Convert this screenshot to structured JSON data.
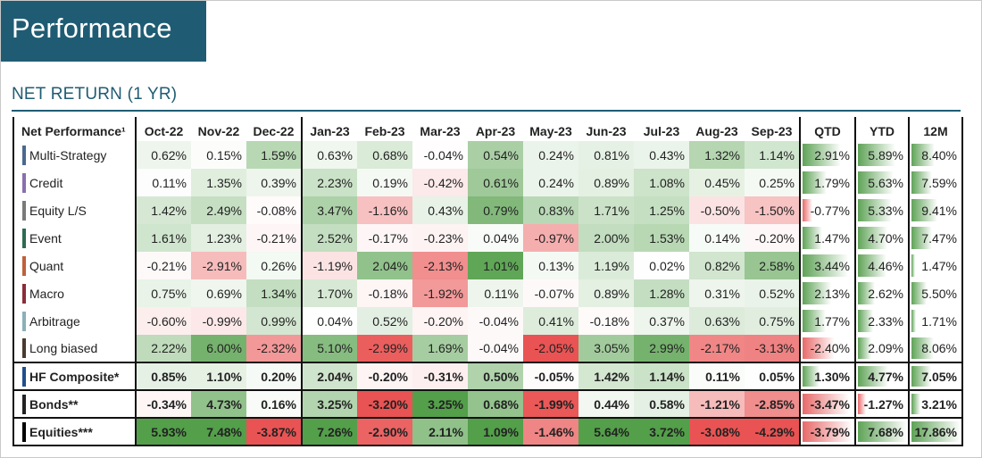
{
  "header": {
    "title": "Performance",
    "subtitle": "NET RETURN (1 YR)"
  },
  "chart_data": {
    "type": "table",
    "row_header": "Net Performance¹",
    "columns": [
      "Oct-22",
      "Nov-22",
      "Dec-22",
      "Jan-23",
      "Feb-23",
      "Mar-23",
      "Apr-23",
      "May-23",
      "Jun-23",
      "Jul-23",
      "Aug-23",
      "Sep-23",
      "QTD",
      "YTD",
      "12M"
    ],
    "rows": [
      {
        "name": "Multi-Strategy",
        "color": "#4a6a8c",
        "values": [
          0.62,
          0.15,
          1.59,
          0.63,
          0.68,
          -0.04,
          0.54,
          0.24,
          0.81,
          0.43,
          1.32,
          1.14,
          2.91,
          5.89,
          8.4
        ],
        "labels": [
          "0.62%",
          "0.15%",
          "1.59%",
          "0.63%",
          "0.68%",
          "-0.04%",
          "0.54%",
          "0.24%",
          "0.81%",
          "0.43%",
          "1.32%",
          "1.14%",
          "2.91%",
          "5.89%",
          "8.40%"
        ]
      },
      {
        "name": "Credit",
        "color": "#8a6fb0",
        "values": [
          0.11,
          1.35,
          0.39,
          2.23,
          0.19,
          -0.42,
          0.61,
          0.24,
          0.89,
          1.08,
          0.45,
          0.25,
          1.79,
          5.63,
          7.59
        ],
        "labels": [
          "0.11%",
          "1.35%",
          "0.39%",
          "2.23%",
          "0.19%",
          "-0.42%",
          "0.61%",
          "0.24%",
          "0.89%",
          "1.08%",
          "0.45%",
          "0.25%",
          "1.79%",
          "5.63%",
          "7.59%"
        ]
      },
      {
        "name": "Equity L/S",
        "color": "#7a7a7a",
        "values": [
          1.42,
          2.49,
          -0.08,
          3.47,
          -1.16,
          0.43,
          0.79,
          0.83,
          1.71,
          1.25,
          -0.5,
          -1.5,
          -0.77,
          5.33,
          9.41
        ],
        "labels": [
          "1.42%",
          "2.49%",
          "-0.08%",
          "3.47%",
          "-1.16%",
          "0.43%",
          "0.79%",
          "0.83%",
          "1.71%",
          "1.25%",
          "-0.50%",
          "-1.50%",
          "-0.77%",
          "5.33%",
          "9.41%"
        ]
      },
      {
        "name": "Event",
        "color": "#2d6b52",
        "values": [
          1.61,
          1.23,
          -0.21,
          2.52,
          -0.17,
          -0.23,
          0.04,
          -0.97,
          2.0,
          1.53,
          0.14,
          -0.2,
          1.47,
          4.7,
          7.47
        ],
        "labels": [
          "1.61%",
          "1.23%",
          "-0.21%",
          "2.52%",
          "-0.17%",
          "-0.23%",
          "0.04%",
          "-0.97%",
          "2.00%",
          "1.53%",
          "0.14%",
          "-0.20%",
          "1.47%",
          "4.70%",
          "7.47%"
        ]
      },
      {
        "name": "Quant",
        "color": "#c0603a",
        "values": [
          -0.21,
          -2.91,
          0.26,
          -1.19,
          2.04,
          -2.13,
          1.01,
          0.13,
          1.19,
          0.02,
          0.82,
          2.58,
          3.44,
          4.46,
          1.47
        ],
        "labels": [
          "-0.21%",
          "-2.91%",
          "0.26%",
          "-1.19%",
          "2.04%",
          "-2.13%",
          "1.01%",
          "0.13%",
          "1.19%",
          "0.02%",
          "0.82%",
          "2.58%",
          "3.44%",
          "4.46%",
          "1.47%"
        ]
      },
      {
        "name": "Macro",
        "color": "#8a2d3a",
        "values": [
          0.75,
          0.69,
          1.34,
          1.7,
          -0.18,
          -1.92,
          0.11,
          -0.07,
          0.89,
          1.28,
          0.31,
          0.52,
          2.13,
          2.62,
          5.5
        ],
        "labels": [
          "0.75%",
          "0.69%",
          "1.34%",
          "1.70%",
          "-0.18%",
          "-1.92%",
          "0.11%",
          "-0.07%",
          "0.89%",
          "1.28%",
          "0.31%",
          "0.52%",
          "2.13%",
          "2.62%",
          "5.50%"
        ]
      },
      {
        "name": "Arbitrage",
        "color": "#8ab0b8",
        "values": [
          -0.6,
          -0.99,
          0.99,
          0.04,
          0.52,
          -0.2,
          -0.04,
          0.41,
          -0.18,
          0.37,
          0.63,
          0.75,
          1.77,
          2.33,
          1.71
        ],
        "labels": [
          "-0.60%",
          "-0.99%",
          "0.99%",
          "0.04%",
          "0.52%",
          "-0.20%",
          "-0.04%",
          "0.41%",
          "-0.18%",
          "0.37%",
          "0.63%",
          "0.75%",
          "1.77%",
          "2.33%",
          "1.71%"
        ]
      },
      {
        "name": "Long biased",
        "color": "#4a3a30",
        "values": [
          2.22,
          6.0,
          -2.32,
          5.1,
          -2.99,
          1.69,
          -0.04,
          -2.05,
          3.05,
          2.99,
          -2.17,
          -3.13,
          -2.4,
          2.09,
          8.06
        ],
        "labels": [
          "2.22%",
          "6.00%",
          "-2.32%",
          "5.10%",
          "-2.99%",
          "1.69%",
          "-0.04%",
          "-2.05%",
          "3.05%",
          "2.99%",
          "-2.17%",
          "-3.13%",
          "-2.40%",
          "2.09%",
          "8.06%"
        ]
      },
      {
        "name": "HF Composite*",
        "color": "#1f4e8c",
        "bold": true,
        "values": [
          0.85,
          1.1,
          0.2,
          2.04,
          -0.2,
          -0.31,
          0.5,
          -0.05,
          1.42,
          1.14,
          0.11,
          0.05,
          1.3,
          4.77,
          7.05
        ],
        "labels": [
          "0.85%",
          "1.10%",
          "0.20%",
          "2.04%",
          "-0.20%",
          "-0.31%",
          "0.50%",
          "-0.05%",
          "1.42%",
          "1.14%",
          "0.11%",
          "0.05%",
          "1.30%",
          "4.77%",
          "7.05%"
        ]
      },
      {
        "name": "Bonds**",
        "color": "#222222",
        "bold": true,
        "values": [
          -0.34,
          4.73,
          0.16,
          3.25,
          -3.2,
          3.25,
          0.68,
          -1.99,
          0.44,
          0.58,
          -1.21,
          -2.85,
          -3.47,
          -1.27,
          3.21
        ],
        "labels": [
          "-0.34%",
          "4.73%",
          "0.16%",
          "3.25%",
          "-3.20%",
          "3.25%",
          "0.68%",
          "-1.99%",
          "0.44%",
          "0.58%",
          "-1.21%",
          "-2.85%",
          "-3.47%",
          "-1.27%",
          "3.21%"
        ]
      },
      {
        "name": "Equities***",
        "color": "#000000",
        "bold": true,
        "values": [
          5.93,
          7.48,
          -3.87,
          7.26,
          -2.9,
          2.11,
          1.09,
          -1.46,
          5.64,
          3.72,
          -3.08,
          -4.29,
          -3.79,
          7.68,
          17.86
        ],
        "labels": [
          "5.93%",
          "7.48%",
          "-3.87%",
          "7.26%",
          "-2.90%",
          "2.11%",
          "1.09%",
          "-1.46%",
          "5.64%",
          "3.72%",
          "-3.08%",
          "-4.29%",
          "-3.79%",
          "7.68%",
          "17.86%"
        ]
      }
    ],
    "colors": {
      "positive": "#4a9a40",
      "negative": "#e84a4a",
      "neutral": "#ffffff",
      "bar_positive": "#5fa357",
      "bar_negative": "#e86a6a"
    }
  }
}
